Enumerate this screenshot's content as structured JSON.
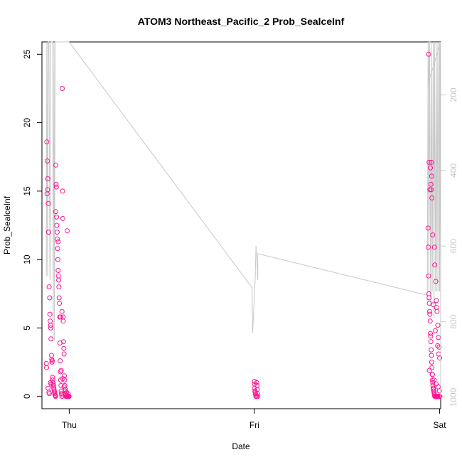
{
  "chart_data": {
    "type": "scatter",
    "title": "ATOM3 Northeast_Pacific_2 Prob_SealceInf",
    "xlabel": "Date",
    "ylabel": "Prob_SealceInf",
    "x_ticks": [
      "Thu",
      "Fri",
      "Sat"
    ],
    "x_domain": [
      "Wed 20:28",
      "Sat 00:08"
    ],
    "ylim": [
      -0.9,
      25.9
    ],
    "y_ticks": [
      0,
      5,
      10,
      15,
      20,
      25
    ],
    "y2_ticks": [
      200,
      400,
      600,
      800,
      1000
    ],
    "y2_lim": [
      1030,
      60
    ],
    "y2_reversed": true,
    "grid": false,
    "colors": {
      "points": "#ff1493",
      "depth_line": "#c8c8c8"
    },
    "series": [
      {
        "type": "scatter",
        "x": [
          "Wed 21:06",
          "Wed 21:10",
          "Wed 21:14",
          "Wed 21:12",
          "Wed 21:08",
          "Wed 21:18",
          "Wed 21:20",
          "Wed 21:24",
          "Wed 21:28",
          "Wed 21:30",
          "Wed 21:32",
          "Wed 21:36",
          "Wed 21:38",
          "Wed 21:42",
          "Wed 21:44",
          "Wed 21:46",
          "Wed 21:48",
          "Wed 21:50",
          "Wed 21:52",
          "Wed 21:54",
          "Wed 21:56",
          "Wed 21:58",
          "Wed 22:00",
          "Wed 22:02",
          "Wed 22:04",
          "Wed 22:06",
          "Wed 22:08",
          "Wed 22:10",
          "Wed 22:12",
          "Wed 22:14",
          "Wed 22:16",
          "Wed 22:18",
          "Wed 22:20",
          "Wed 22:22",
          "Wed 22:24",
          "Wed 22:26",
          "Wed 22:28",
          "Wed 22:30",
          "Wed 22:32",
          "Wed 22:34",
          "Wed 22:36",
          "Wed 22:38",
          "Wed 22:40",
          "Wed 22:42",
          "Wed 22:44",
          "Wed 22:46",
          "Wed 22:48",
          "Wed 22:50",
          "Wed 22:52",
          "Wed 22:54",
          "Wed 22:56",
          "Wed 22:58",
          "Wed 23:00",
          "Wed 23:02",
          "Wed 23:04",
          "Wed 23:06",
          "Wed 23:08",
          "Wed 23:10",
          "Wed 23:12",
          "Wed 23:14",
          "Wed 23:16",
          "Wed 23:18",
          "Wed 23:20",
          "Wed 23:22",
          "Wed 23:24",
          "Wed 23:26",
          "Wed 23:28",
          "Wed 23:30",
          "Wed 23:32",
          "Wed 23:34",
          "Wed 23:36",
          "Wed 23:38",
          "Wed 23:40",
          "Wed 23:42",
          "Wed 23:44",
          "Wed 23:46",
          "Wed 23:48",
          "Wed 23:50",
          "Wed 23:52",
          "Wed 23:54",
          "Wed 23:56",
          "Wed 23:58",
          "Wed 23:59",
          "Wed 21:02",
          "Wed 21:04",
          "Wed 21:16",
          "Wed 21:22",
          "Wed 21:26",
          "Wed 21:34",
          "Wed 21:40",
          "Wed 22:58",
          "Wed 23:10",
          "Wed 23:20",
          "Wed 23:30",
          "Wed 23:40",
          "Wed 23:50",
          "Wed 21:36",
          "Wed 22:16",
          "Wed 22:34",
          "Wed 22:52",
          "Wed 23:04",
          "Wed 23:44",
          "Fri 00:00",
          "Fri 00:00",
          "Fri 00:00",
          "Fri 00:04",
          "Fri 00:06",
          "Fri 00:08",
          "Fri 00:10",
          "Fri 00:12",
          "Fri 00:14",
          "Fri 00:16",
          "Fri 00:18",
          "Fri 00:20",
          "Fri 00:22",
          "Fri 00:24",
          "Fri 00:26",
          "Fri 22:30",
          "Fri 22:32",
          "Fri 22:34",
          "Fri 22:36",
          "Fri 22:38",
          "Fri 22:40",
          "Fri 22:42",
          "Fri 22:44",
          "Fri 22:46",
          "Fri 22:48",
          "Fri 22:50",
          "Fri 22:52",
          "Fri 22:54",
          "Fri 22:56",
          "Fri 22:58",
          "Fri 23:00",
          "Fri 23:02",
          "Fri 23:04",
          "Fri 23:06",
          "Fri 23:08",
          "Fri 23:10",
          "Fri 23:12",
          "Fri 23:14",
          "Fri 23:16",
          "Fri 23:18",
          "Fri 23:20",
          "Fri 23:22",
          "Fri 23:24",
          "Fri 23:26",
          "Fri 23:28",
          "Fri 23:30",
          "Fri 23:32",
          "Fri 23:34",
          "Fri 23:36",
          "Fri 23:38",
          "Fri 23:40",
          "Fri 23:42",
          "Fri 23:44",
          "Fri 23:46",
          "Fri 23:48",
          "Fri 23:50",
          "Fri 23:52",
          "Fri 23:54",
          "Fri 23:56",
          "Fri 23:58",
          "Sat 00:00",
          "Sat 00:02",
          "Fri 22:44",
          "Fri 22:54",
          "Fri 22:56",
          "Fri 22:58",
          "Fri 23:06",
          "Fri 23:20",
          "Fri 23:22",
          "Fri 23:30",
          "Fri 23:34",
          "Fri 23:36",
          "Fri 23:40",
          "Fri 23:46",
          "Fri 23:50",
          "Fri 23:56",
          "Fri 22:34",
          "Fri 22:38",
          "Fri 22:48",
          "Fri 22:52",
          "Fri 23:00",
          "Fri 23:12",
          "Fri 23:26",
          "Fri 23:44",
          "Fri 23:52",
          "Sat 00:00",
          "Fri 22:40",
          "Fri 23:04",
          "Fri 23:16",
          "Fri 23:32",
          "Fri 23:48",
          "Fri 23:58"
        ],
        "y": [
          18.6,
          17.2,
          15.9,
          15.1,
          14.8,
          14.1,
          12.0,
          8.0,
          7.2,
          6.0,
          5.5,
          5.0,
          4.2,
          3.0,
          2.7,
          2.5,
          2.6,
          1.4,
          1.2,
          1.0,
          0.9,
          0.8,
          0.6,
          0.5,
          0.4,
          0.3,
          0.2,
          0.1,
          0.05,
          0.0,
          16.9,
          15.5,
          15.3,
          13.1,
          12.5,
          12.0,
          11.5,
          10.8,
          10.0,
          9.2,
          8.8,
          8.5,
          8.0,
          7.2,
          6.8,
          5.8,
          3.9,
          2.6,
          1.8,
          1.2,
          0.8,
          0.4,
          0.2,
          0.1,
          0.0,
          22.5,
          15.0,
          13.0,
          5.8,
          5.5,
          4.0,
          3.5,
          3.1,
          1.5,
          1.2,
          0.8,
          0.4,
          0.2,
          0.1,
          0.0,
          0.0,
          0.0,
          0.0,
          0.0,
          0.0,
          0.0,
          0.0,
          0.0,
          0.0,
          0.0,
          0.0,
          0.0,
          0.0,
          2.4,
          2.1,
          0.6,
          0.3,
          0.2,
          1.0,
          0.9,
          1.9,
          1.3,
          0.7,
          0.5,
          0.3,
          0.2,
          5.2,
          13.5,
          11.3,
          5.8,
          6.2,
          12.1,
          1.1,
          0.9,
          0.6,
          0.4,
          0.3,
          0.2,
          0.1,
          0.0,
          0.0,
          0.0,
          1.0,
          0.8,
          0.5,
          0.2,
          0.0,
          12.3,
          10.9,
          8.8,
          7.5,
          7.2,
          6.8,
          6.2,
          6.0,
          5.5,
          4.6,
          4.4,
          4.0,
          3.4,
          3.0,
          2.5,
          2.1,
          1.6,
          1.2,
          1.0,
          0.8,
          0.6,
          0.5,
          0.4,
          0.3,
          0.2,
          0.1,
          0.0,
          0.0,
          0.0,
          0.0,
          0.0,
          0.0,
          0.0,
          0.0,
          0.0,
          0.0,
          0.0,
          0.0,
          0.0,
          0.0,
          0.0,
          0.0,
          0.0,
          0.0,
          0.0,
          0.0,
          0.0,
          15.1,
          15.1,
          17.1,
          16.1,
          11.8,
          10.9,
          9.6,
          8.4,
          7.0,
          6.5,
          6.2,
          5.2,
          4.3,
          3.6,
          25.0,
          17.1,
          16.7,
          15.5,
          14.5,
          6.7,
          4.8,
          3.7,
          3.1,
          2.8,
          1.9,
          1.6,
          1.2,
          0.9,
          0.7,
          0.4
        ]
      }
    ],
    "depth_series": {
      "x": [
        "Wed 21:02",
        "Wed 21:02",
        "Wed 21:06",
        "Wed 21:12",
        "Wed 21:16",
        "Wed 21:22",
        "Wed 21:30",
        "Wed 21:32",
        "Wed 21:36",
        "Wed 21:44",
        "Wed 21:52",
        "Wed 21:56",
        "Wed 22:02",
        "Wed 22:06",
        "Wed 22:10",
        "Wed 22:16",
        "Wed 22:24",
        "Wed 22:30",
        "Wed 22:40",
        "Wed 22:46",
        "Wed 22:54",
        "Wed 23:04",
        "Wed 23:10",
        "Wed 23:16",
        "Wed 23:24",
        "Wed 23:30",
        "Wed 23:40",
        "Wed 23:50",
        "Wed 23:59",
        "Thu 23:42",
        "Thu 23:46",
        "Fri 00:06",
        "Fri 00:12",
        "Fri 00:20",
        "Fri 00:26",
        "Fri 00:26",
        "Fri 22:24",
        "Fri 22:30",
        "Fri 22:36",
        "Fri 22:42",
        "Fri 22:50",
        "Fri 22:56",
        "Fri 23:02",
        "Fri 23:10",
        "Fri 23:16",
        "Fri 23:20",
        "Fri 23:28",
        "Fri 23:34",
        "Fri 23:40",
        "Fri 23:46",
        "Fri 23:54",
        "Fri 23:58",
        "Sat 00:00",
        "Sat 00:02",
        "Sat 00:08",
        "Sat 00:08",
        "Fri 22:30",
        "Fri 22:34",
        "Fri 22:40",
        "Fri 22:46"
      ],
      "y": [
        620,
        680,
        60,
        680,
        60,
        60,
        680,
        690,
        60,
        60,
        60,
        850,
        60,
        850,
        60,
        60,
        60,
        60,
        60,
        60,
        60,
        60,
        60,
        60,
        60,
        60,
        60,
        60,
        60,
        710,
        830,
        690,
        600,
        650,
        690,
        620,
        730,
        60,
        720,
        60,
        760,
        60,
        720,
        60,
        790,
        60,
        720,
        60,
        720,
        60,
        720,
        60,
        720,
        60,
        680,
        60,
        170,
        180,
        60,
        60
      ]
    }
  }
}
